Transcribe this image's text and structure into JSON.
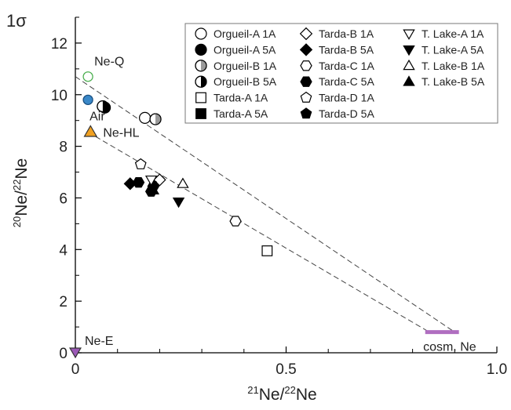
{
  "chart_data": {
    "type": "scatter",
    "title": "",
    "sigma_label": "1σ",
    "xlabel": {
      "pre": "21",
      "main": "Ne/",
      "sup2": "22",
      "post": "Ne"
    },
    "ylabel": {
      "pre": "20",
      "main": "Ne/",
      "sup2": "22",
      "post": "Ne"
    },
    "xlim": [
      0,
      1.0
    ],
    "ylim": [
      0,
      13
    ],
    "x_ticks": [
      {
        "v": 0,
        "label": "0"
      },
      {
        "v": 0.5,
        "label": "0.5"
      },
      {
        "v": 1.0,
        "label": "1.0"
      }
    ],
    "y_ticks": [
      {
        "v": 0,
        "label": "0"
      },
      {
        "v": 2,
        "label": "2"
      },
      {
        "v": 4,
        "label": "4"
      },
      {
        "v": 6,
        "label": "6"
      },
      {
        "v": 8,
        "label": "8"
      },
      {
        "v": 10,
        "label": "10"
      },
      {
        "v": 12,
        "label": "12"
      }
    ],
    "grid": false,
    "legend_position": "top-right",
    "mixing_lines": [
      {
        "x": [
          0.0,
          0.9
        ],
        "y": [
          10.7,
          0.8
        ]
      },
      {
        "x": [
          0.03,
          0.84
        ],
        "y": [
          8.55,
          0.8
        ]
      }
    ],
    "components": [
      {
        "label": "Ne-Q",
        "x": 0.03,
        "y": 10.7,
        "marker": "circle",
        "fill": "none",
        "stroke": "#4caf50"
      },
      {
        "label": "Air",
        "x": 0.03,
        "y": 9.8,
        "marker": "circle",
        "fill": "#3a88c8",
        "stroke": "#1a4f80"
      },
      {
        "label": "Ne-HL",
        "x": 0.036,
        "y": 8.55,
        "marker": "triangle-up",
        "fill": "#f0a020",
        "stroke": "#333333"
      },
      {
        "label": "Ne-E",
        "x": 0.0,
        "y": 0.0,
        "marker": "triangle-down",
        "fill": "#9b59b6",
        "stroke": "#333333"
      },
      {
        "label": "cosm. Ne",
        "x_range": [
          0.83,
          0.91
        ],
        "y": 0.8,
        "marker": "bar",
        "fill": "#b06ec0"
      }
    ],
    "series": [
      {
        "name": "Orgueil-A 1A",
        "marker": "circle-open",
        "x": [
          0.165
        ],
        "y": [
          9.1
        ]
      },
      {
        "name": "Orgueil-A 5A",
        "marker": "circle-filled",
        "x": [
          0.07
        ],
        "y": [
          9.5
        ]
      },
      {
        "name": "Orgueil-B 1A",
        "marker": "circle-half-gray",
        "x": [
          0.19
        ],
        "y": [
          9.05
        ]
      },
      {
        "name": "Orgueil-B 5A",
        "marker": "circle-half-black",
        "x": [
          0.065
        ],
        "y": [
          9.55
        ]
      },
      {
        "name": "Tarda-A 1A",
        "marker": "square-open",
        "x": [
          0.455
        ],
        "y": [
          3.95
        ]
      },
      {
        "name": "Tarda-A 5A",
        "marker": "square-filled",
        "x": [],
        "y": []
      },
      {
        "name": "Tarda-B 1A",
        "marker": "diamond-open",
        "x": [
          0.2
        ],
        "y": [
          6.7
        ]
      },
      {
        "name": "Tarda-B 5A",
        "marker": "diamond-filled",
        "x": [
          0.13
        ],
        "y": [
          6.55
        ]
      },
      {
        "name": "Tarda-C 1A",
        "marker": "hexagon-open",
        "x": [
          0.38
        ],
        "y": [
          5.1
        ]
      },
      {
        "name": "Tarda-C 5A",
        "marker": "hexagon-filled",
        "x": [
          0.15,
          0.18,
          0.185
        ],
        "y": [
          6.6,
          6.25,
          6.45
        ]
      },
      {
        "name": "Tarda-D 1A",
        "marker": "pentagon-open",
        "x": [
          0.155
        ],
        "y": [
          7.3
        ]
      },
      {
        "name": "Tarda-D 5A",
        "marker": "pentagon-filled",
        "x": [],
        "y": []
      },
      {
        "name": "T. Lake-A 1A",
        "marker": "triangle-down-open",
        "x": [
          0.18
        ],
        "y": [
          6.7
        ]
      },
      {
        "name": "T. Lake-A 5A",
        "marker": "triangle-down-filled",
        "x": [
          0.245
        ],
        "y": [
          5.85
        ]
      },
      {
        "name": "T. Lake-B 1A",
        "marker": "triangle-up-open",
        "x": [
          0.255
        ],
        "y": [
          6.55
        ]
      },
      {
        "name": "T. Lake-B 5A",
        "marker": "triangle-up-filled",
        "x": [
          0.185
        ],
        "y": [
          6.3
        ]
      }
    ]
  }
}
